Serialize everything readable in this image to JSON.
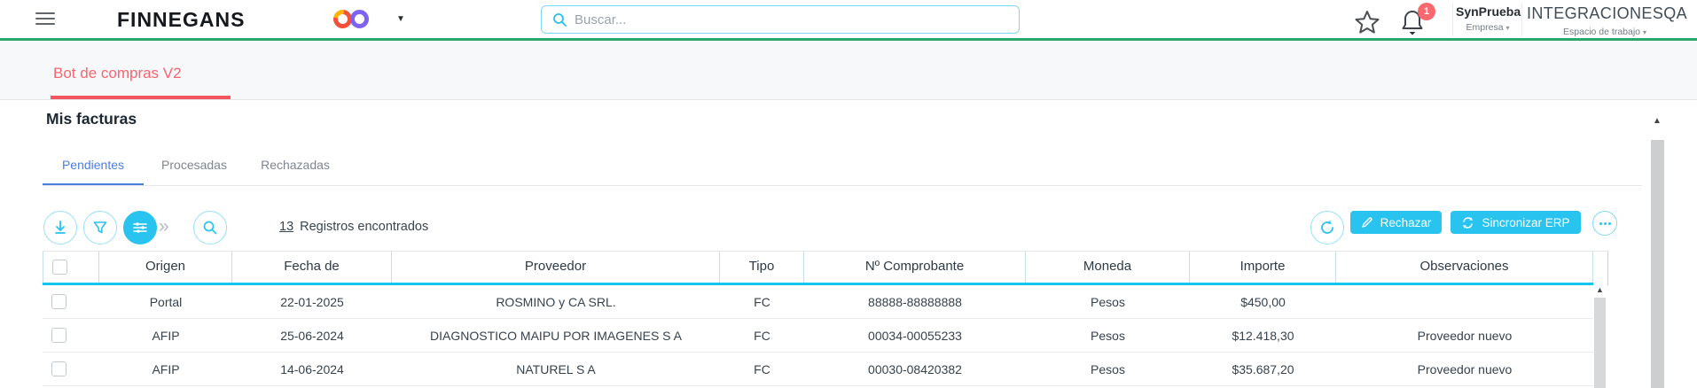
{
  "colors": {
    "accent_cyan": "#29c3f0",
    "brand_green": "#2aa76b",
    "module_red": "#f4626c",
    "active_tab_blue": "#4a7fe0",
    "badge_red": "#f7696e"
  },
  "icons": {
    "caret_down_small": "▾",
    "brand_caret": "▼",
    "chevron_double": "»",
    "scroll_up": "▲"
  },
  "header": {
    "brand": "FINNEGANS",
    "search": {
      "placeholder": "Buscar..."
    },
    "notifications_badge": "1",
    "company": {
      "name": "SynPrueba",
      "label": "Empresa"
    },
    "workspace": {
      "name": "INTEGRACIONESQA",
      "label": "Espacio de trabajo"
    }
  },
  "module_tab": {
    "label": "Bot de compras V2"
  },
  "page": {
    "title": "Mis facturas"
  },
  "tabs": [
    {
      "label": "Pendientes"
    },
    {
      "label": "Procesadas"
    },
    {
      "label": "Rechazadas"
    }
  ],
  "toolbar": {
    "records_count": "13",
    "records_label": "Registros encontrados",
    "reject_button": "Rechazar",
    "sync_button": "Sincronizar ERP"
  },
  "table": {
    "columns": [
      "Origen",
      "Fecha de",
      "Proveedor",
      "Tipo",
      "Nº Comprobante",
      "Moneda",
      "Importe",
      "Observaciones"
    ],
    "rows": [
      {
        "origen": "Portal",
        "fecha": "22-01-2025",
        "proveedor": "ROSMINO y CA SRL.",
        "tipo": "FC",
        "comprobante": "88888-88888888",
        "moneda": "Pesos",
        "importe": "$450,00",
        "observaciones": ""
      },
      {
        "origen": "AFIP",
        "fecha": "25-06-2024",
        "proveedor": "DIAGNOSTICO MAIPU POR IMAGENES S A",
        "tipo": "FC",
        "comprobante": "00034-00055233",
        "moneda": "Pesos",
        "importe": "$12.418,30",
        "observaciones": "Proveedor nuevo"
      },
      {
        "origen": "AFIP",
        "fecha": "14-06-2024",
        "proveedor": "NATUREL S A",
        "tipo": "FC",
        "comprobante": "00030-08420382",
        "moneda": "Pesos",
        "importe": "$35.687,20",
        "observaciones": "Proveedor nuevo"
      }
    ]
  }
}
